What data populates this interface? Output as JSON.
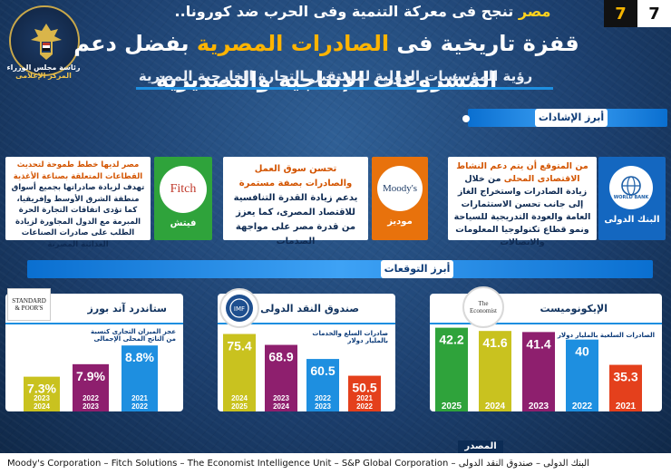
{
  "header": {
    "top_line_highlight": "مصر",
    "top_line_rest": " تنجح فى معركة التنمية وفى الحرب ضد كورونا..",
    "main_prefix": "قفزة تاريخية فى ",
    "main_highlight": "الصادرات المصرية",
    "main_suffix": " بفضل دعم المشروعات الإنتاجية والتصديرية",
    "subtitle": "رؤية المؤسسات الدولية لمستقبل التجارة الخارجية المصرية",
    "issue_left": "7",
    "issue_right": "7",
    "emblem_caption_1": "رئاسة مجلس الوزراء",
    "emblem_caption_2": "المركز الإعلامى",
    "emblem_top": "جمهورية مصر العربية"
  },
  "insights": {
    "section_label": "أبرز الإشادات",
    "cards": [
      {
        "org_name": "البنك الدولى",
        "logo_text": "WORLD BANK",
        "tab_color": "#1467c0",
        "text_highlight": "من المتوقع أن يتم دعم النشاط الاقتصادى المحلى",
        "text_rest": " من خلال زيادة الصادرات واستخراج الغاز إلى جانب تحسن الاستثمارات العامة والعودة التدريجية للسياحة ونمو قطاع تكنولوجيا المعلومات والاتصالات"
      },
      {
        "org_name": "موديز",
        "logo_text": "Moody's",
        "tab_color": "#e8720c",
        "text_highlight": "تحسن سوق العمل والصادرات بصفة مستمرة",
        "text_rest": " يدعم زيادة القدرة التنافسية للاقتصاد المصرى، كما يعزز من قدرة مصر على مواجهة الصدمات"
      },
      {
        "org_name": "فيتش",
        "logo_text": "Fitch",
        "tab_color": "#2fa33b",
        "text_highlight": "مصر لديها خطط طموحة لتحديث القطاعات المتعلقة بصناعة الأغذية",
        "text_rest": " تهدف لزيادة صادراتها بجميع أسواق منطقة الشرق الأوسط وإفريقيا، كما تؤدى اتفاقات التجارة الحرة المبرمة مع الدول المجاورة لزيادة الطلب على صادرات الصناعات الغذائية المصرية"
      }
    ]
  },
  "forecasts": {
    "section_label": "أبرز التوقعات"
  },
  "chart_data": [
    {
      "type": "bar",
      "org_name": "الإيكونوميست",
      "logo_text": "The Economist",
      "subtitle": "الصادرات السلعية بالمليار دولار",
      "categories": [
        "2025",
        "2024",
        "2023",
        "2022",
        "2021"
      ],
      "values": [
        42.2,
        41.6,
        41.4,
        40,
        35.3
      ],
      "labels": [
        "42.2",
        "41.6",
        "41.4",
        "40",
        "35.3"
      ],
      "colors": [
        "#2fa33b",
        "#c9c21f",
        "#8e1f6e",
        "#1e8fe0",
        "#e4401c"
      ]
    },
    {
      "type": "bar",
      "org_name": "صندوق النقد الدولى",
      "logo_text": "IMF",
      "subtitle": "صادرات السلع والخدمات بالمليار دولار",
      "categories": [
        "2024\n2025",
        "2023\n2024",
        "2022\n2023",
        "2021\n2022"
      ],
      "values": [
        75.4,
        68.9,
        60.5,
        50.5
      ],
      "labels": [
        "75.4",
        "68.9",
        "60.5",
        "50.5"
      ],
      "colors": [
        "#c9c21f",
        "#8e1f6e",
        "#1e8fe0",
        "#e4401c"
      ]
    },
    {
      "type": "bar",
      "org_name": "ستاندرد آند بورز",
      "logo_text": "STANDARD & POOR'S",
      "subtitle": "عجز الميزان التجارى كنسبة من الناتج المحلى الإجمالى",
      "categories": [
        "2023\n2024",
        "2022\n2023",
        "2021\n2022"
      ],
      "values": [
        7.3,
        7.9,
        8.8
      ],
      "labels": [
        "7.3%",
        "7.9%",
        "8.8%"
      ],
      "colors": [
        "#c9c21f",
        "#8e1f6e",
        "#1e8fe0"
      ]
    }
  ],
  "footer": {
    "source_label": "المصدر",
    "sources": "Moody's Corporation – Fitch Solutions – The Economist Intelligence Unit – S&P Global Corporation – البنك الدولى – صندوق النقد الدولى"
  }
}
